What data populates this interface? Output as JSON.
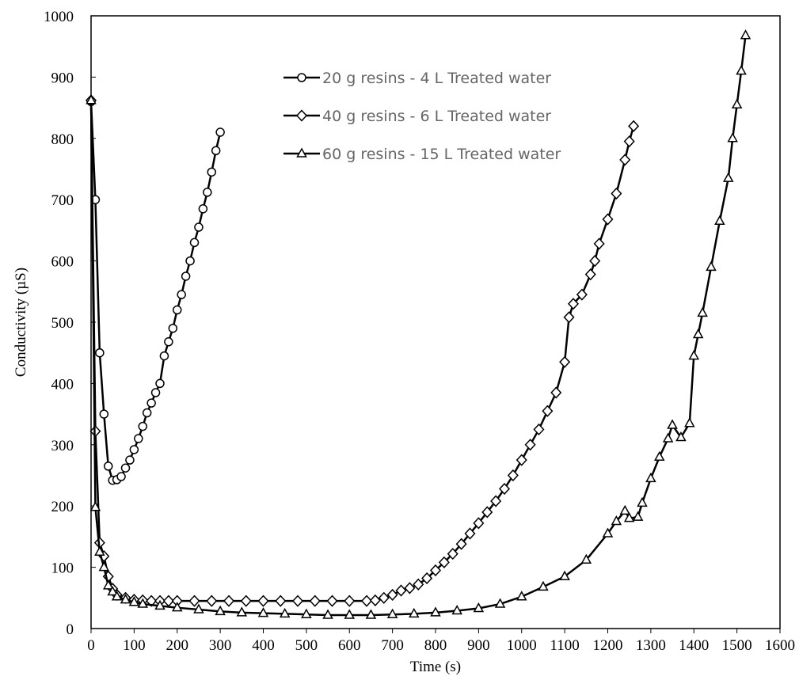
{
  "chart_data": {
    "type": "line",
    "x_label": "Time (s)",
    "y_label": "Conductivity (µS)",
    "xlim": [
      0,
      1600
    ],
    "ylim": [
      0,
      1000
    ],
    "xticks": [
      0,
      100,
      200,
      300,
      400,
      500,
      600,
      700,
      800,
      900,
      1000,
      1100,
      1200,
      1300,
      1400,
      1500,
      1600
    ],
    "yticks": [
      0,
      100,
      200,
      300,
      400,
      500,
      600,
      700,
      800,
      900,
      1000
    ],
    "grid": false,
    "series": [
      {
        "name": "20 g resins - 4 L Treated water",
        "color": "#000000",
        "marker": "circle",
        "x": [
          0,
          10,
          20,
          30,
          40,
          50,
          60,
          70,
          80,
          90,
          100,
          110,
          120,
          130,
          140,
          150,
          160,
          170,
          180,
          190,
          200,
          210,
          220,
          230,
          240,
          250,
          260,
          270,
          280,
          290,
          300
        ],
        "values": [
          860,
          700,
          450,
          350,
          265,
          242,
          243,
          248,
          262,
          275,
          292,
          310,
          330,
          352,
          368,
          385,
          400,
          445,
          468,
          490,
          520,
          545,
          575,
          600,
          630,
          655,
          685,
          712,
          745,
          780,
          810
        ]
      },
      {
        "name": "40 g resins - 6 L Treated water",
        "color": "#000000",
        "marker": "diamond",
        "x": [
          0,
          10,
          20,
          30,
          40,
          50,
          60,
          80,
          100,
          120,
          140,
          160,
          180,
          200,
          240,
          280,
          320,
          360,
          400,
          440,
          480,
          520,
          560,
          600,
          640,
          660,
          680,
          700,
          720,
          740,
          760,
          780,
          800,
          820,
          840,
          860,
          880,
          900,
          920,
          940,
          960,
          980,
          1000,
          1020,
          1040,
          1060,
          1080,
          1100,
          1110,
          1120,
          1140,
          1160,
          1170,
          1180,
          1200,
          1220,
          1240,
          1250,
          1260
        ],
        "values": [
          862,
          322,
          140,
          118,
          85,
          65,
          55,
          50,
          47,
          46,
          45,
          45,
          45,
          45,
          45,
          45,
          45,
          45,
          45,
          45,
          45,
          45,
          45,
          45,
          45,
          46,
          50,
          55,
          62,
          66,
          72,
          82,
          95,
          108,
          122,
          138,
          155,
          172,
          190,
          208,
          228,
          250,
          275,
          300,
          325,
          355,
          385,
          435,
          508,
          530,
          545,
          578,
          600,
          628,
          668,
          710,
          765,
          795,
          820
        ]
      },
      {
        "name": "60 g resins - 15 L Treated water",
        "color": "#000000",
        "marker": "triangle",
        "x": [
          0,
          10,
          20,
          30,
          40,
          50,
          60,
          80,
          100,
          120,
          160,
          200,
          250,
          300,
          350,
          400,
          450,
          500,
          550,
          600,
          650,
          700,
          750,
          800,
          850,
          900,
          950,
          1000,
          1050,
          1100,
          1150,
          1200,
          1220,
          1240,
          1250,
          1270,
          1280,
          1300,
          1320,
          1340,
          1350,
          1370,
          1390,
          1400,
          1410,
          1420,
          1440,
          1460,
          1480,
          1490,
          1500,
          1510,
          1520
        ],
        "values": [
          862,
          198,
          125,
          100,
          70,
          60,
          52,
          47,
          43,
          40,
          37,
          34,
          31,
          28,
          26,
          25,
          24,
          23,
          22,
          22,
          22,
          23,
          24,
          26,
          29,
          33,
          40,
          52,
          68,
          85,
          112,
          155,
          175,
          192,
          180,
          182,
          205,
          245,
          280,
          310,
          332,
          312,
          335,
          445,
          480,
          515,
          590,
          665,
          735,
          800,
          855,
          910,
          968
        ]
      }
    ]
  }
}
